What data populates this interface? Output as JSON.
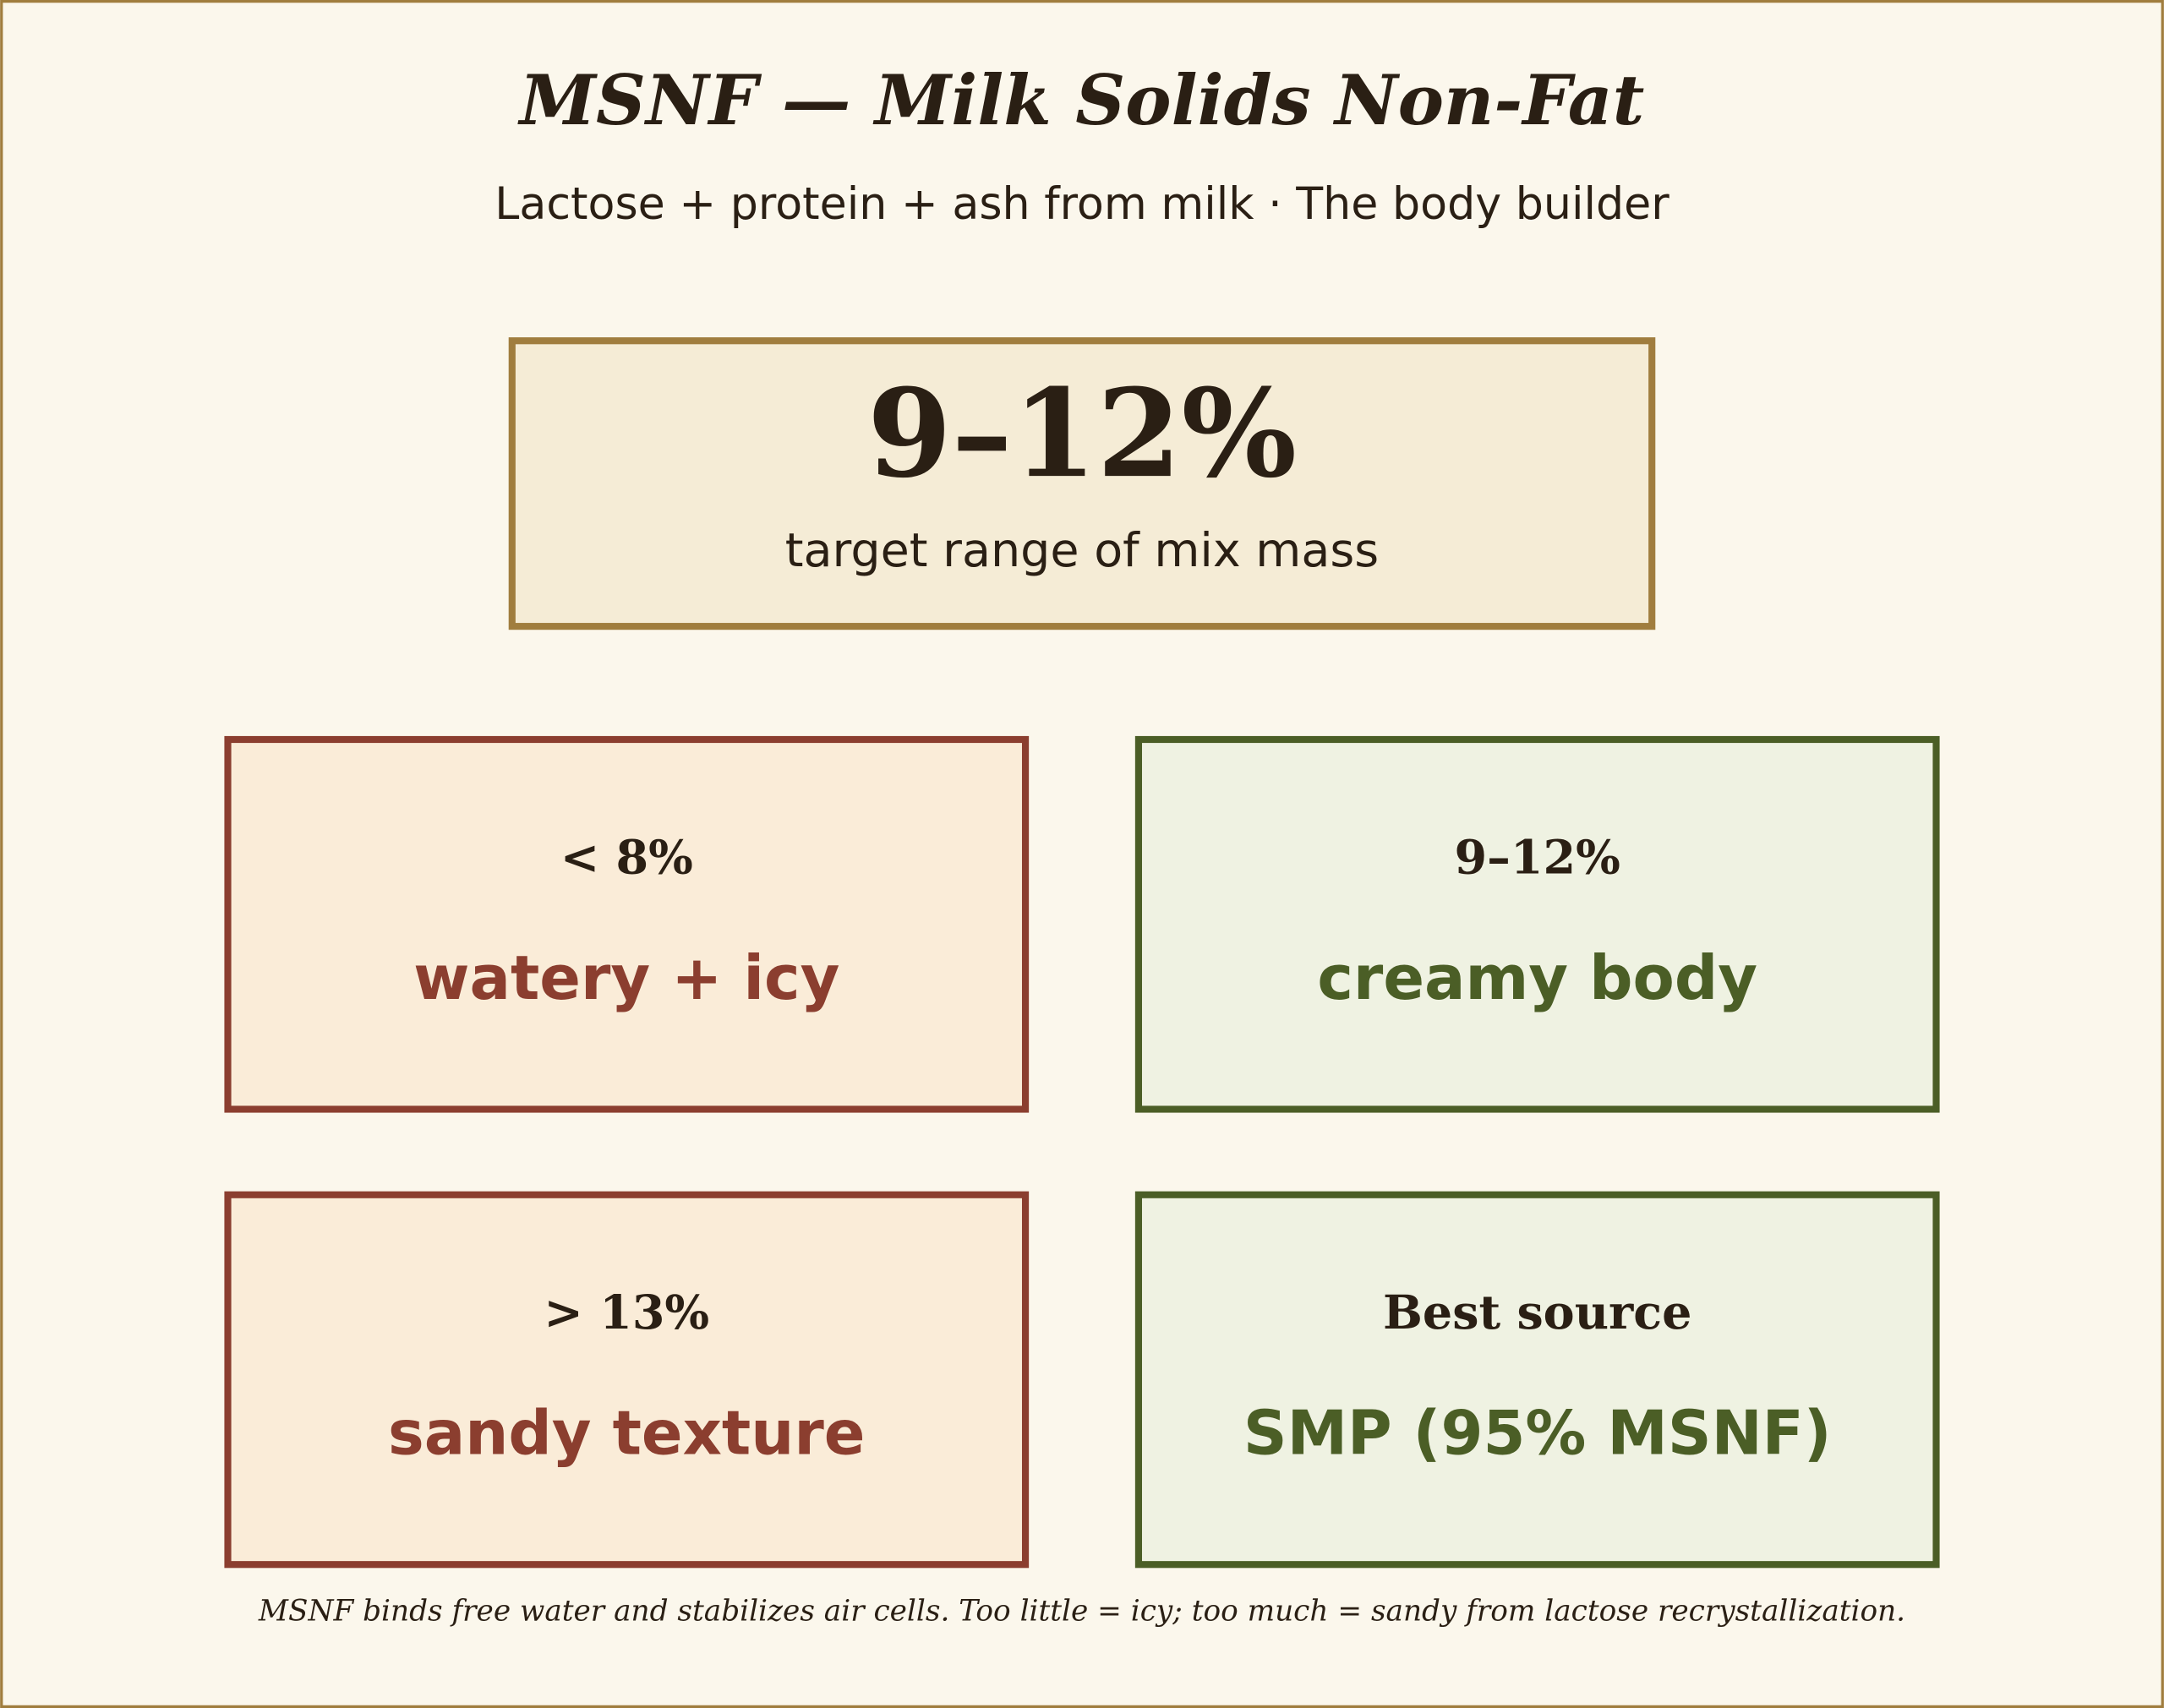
{
  "header": {
    "title": "MSNF — Milk Solids Non-Fat",
    "subtitle": "Lactose + protein + ash from milk · The body builder"
  },
  "hero": {
    "value": "9–12%",
    "caption": "target range of mix mass"
  },
  "cards": [
    {
      "label": "< 8%",
      "text": "watery + icy"
    },
    {
      "label": "9–12%",
      "text": "creamy body"
    },
    {
      "label": "> 13%",
      "text": "sandy texture"
    },
    {
      "label": "Best source",
      "text": "SMP (95% MSNF)"
    }
  ],
  "footnote": "MSNF binds free water and stabilizes air cells. Too little = icy; too much = sandy from lactose recrystallization."
}
